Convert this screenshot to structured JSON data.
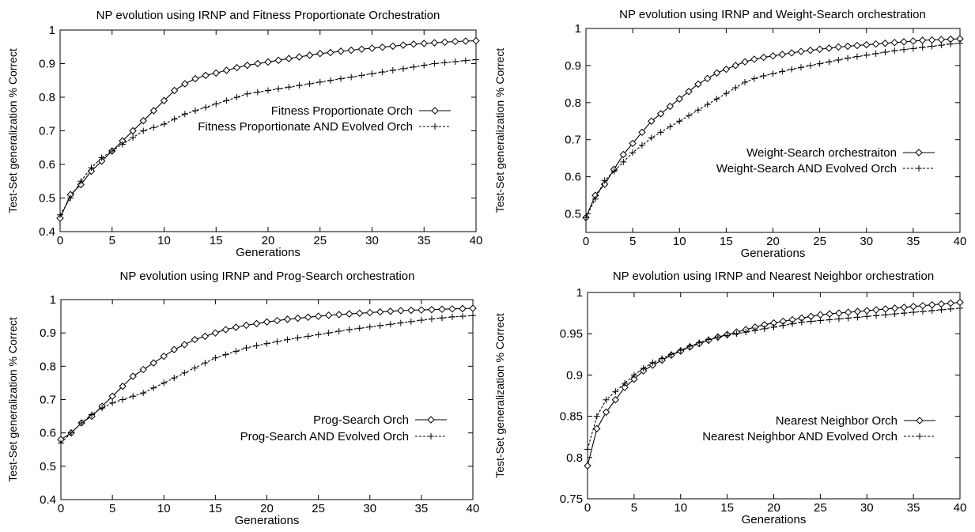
{
  "chart_data": [
    {
      "type": "line",
      "title": "NP evolution using IRNP and Fitness Proportionate Orchestration",
      "xlabel": "Generations",
      "ylabel": "Test-Set generalization % Correct",
      "xlim": [
        0,
        40
      ],
      "ylim": [
        0.4,
        1
      ],
      "xticks": [
        0,
        5,
        10,
        15,
        20,
        25,
        30,
        35,
        40
      ],
      "yticks": [
        0.4,
        0.5,
        0.6,
        0.7,
        0.8,
        0.9,
        1
      ],
      "grid": false,
      "legend": "center-right",
      "x": [
        0,
        1,
        2,
        3,
        4,
        5,
        6,
        7,
        8,
        9,
        10,
        11,
        12,
        13,
        14,
        15,
        16,
        17,
        18,
        19,
        20,
        21,
        22,
        23,
        24,
        25,
        26,
        27,
        28,
        29,
        30,
        31,
        32,
        33,
        34,
        35,
        36,
        37,
        38,
        39,
        40
      ],
      "series": [
        {
          "name": "Fitness Proportionate Orch",
          "marker": "diamond",
          "values": [
            0.44,
            0.51,
            0.54,
            0.58,
            0.61,
            0.64,
            0.67,
            0.7,
            0.73,
            0.76,
            0.79,
            0.82,
            0.84,
            0.855,
            0.865,
            0.872,
            0.88,
            0.888,
            0.895,
            0.9,
            0.905,
            0.91,
            0.915,
            0.92,
            0.925,
            0.93,
            0.933,
            0.937,
            0.94,
            0.943,
            0.946,
            0.949,
            0.952,
            0.955,
            0.958,
            0.96,
            0.962,
            0.964,
            0.966,
            0.967,
            0.968
          ]
        },
        {
          "name": "Fitness Proportionate AND Evolved Orch",
          "marker": "plus",
          "values": [
            0.45,
            0.5,
            0.55,
            0.59,
            0.62,
            0.64,
            0.66,
            0.68,
            0.7,
            0.71,
            0.72,
            0.735,
            0.75,
            0.76,
            0.77,
            0.78,
            0.79,
            0.8,
            0.81,
            0.815,
            0.82,
            0.825,
            0.83,
            0.835,
            0.84,
            0.845,
            0.85,
            0.855,
            0.86,
            0.865,
            0.87,
            0.875,
            0.88,
            0.885,
            0.89,
            0.895,
            0.9,
            0.903,
            0.906,
            0.909,
            0.912
          ]
        }
      ]
    },
    {
      "type": "line",
      "title": "NP evolution using IRNP and Weight-Search orchestration",
      "xlabel": "Generations",
      "ylabel": "Test-Set generalization % Correct",
      "xlim": [
        0,
        40
      ],
      "ylim": [
        0.45,
        1
      ],
      "xticks": [
        0,
        5,
        10,
        15,
        20,
        25,
        30,
        35,
        40
      ],
      "yticks": [
        0.5,
        0.6,
        0.7,
        0.8,
        0.9,
        1
      ],
      "grid": false,
      "legend": "center-right",
      "x": [
        0,
        1,
        2,
        3,
        4,
        5,
        6,
        7,
        8,
        9,
        10,
        11,
        12,
        13,
        14,
        15,
        16,
        17,
        18,
        19,
        20,
        21,
        22,
        23,
        24,
        25,
        26,
        27,
        28,
        29,
        30,
        31,
        32,
        33,
        34,
        35,
        36,
        37,
        38,
        39,
        40
      ],
      "series": [
        {
          "name": "Weight-Search orchestraiton",
          "marker": "diamond",
          "values": [
            0.49,
            0.55,
            0.58,
            0.62,
            0.66,
            0.69,
            0.72,
            0.75,
            0.77,
            0.79,
            0.81,
            0.83,
            0.85,
            0.865,
            0.88,
            0.89,
            0.9,
            0.91,
            0.917,
            0.922,
            0.926,
            0.93,
            0.934,
            0.938,
            0.941,
            0.944,
            0.947,
            0.95,
            0.952,
            0.954,
            0.956,
            0.958,
            0.96,
            0.962,
            0.964,
            0.966,
            0.968,
            0.969,
            0.97,
            0.971,
            0.972
          ]
        },
        {
          "name": "Weight-Search AND Evolved Orch",
          "marker": "plus",
          "values": [
            0.49,
            0.54,
            0.59,
            0.615,
            0.64,
            0.665,
            0.685,
            0.705,
            0.72,
            0.735,
            0.75,
            0.765,
            0.78,
            0.795,
            0.81,
            0.825,
            0.84,
            0.855,
            0.865,
            0.872,
            0.878,
            0.884,
            0.89,
            0.895,
            0.9,
            0.905,
            0.91,
            0.915,
            0.92,
            0.924,
            0.928,
            0.932,
            0.936,
            0.94,
            0.943,
            0.946,
            0.949,
            0.952,
            0.955,
            0.958,
            0.96
          ]
        }
      ]
    },
    {
      "type": "line",
      "title": "NP evolution using IRNP and Prog-Search orchestration",
      "xlabel": "Generations",
      "ylabel": "Test-Set generalization % Correct",
      "xlim": [
        0,
        40
      ],
      "ylim": [
        0.4,
        1
      ],
      "xticks": [
        0,
        5,
        10,
        15,
        20,
        25,
        30,
        35,
        40
      ],
      "yticks": [
        0.4,
        0.5,
        0.6,
        0.7,
        0.8,
        0.9,
        1
      ],
      "grid": false,
      "legend": "center-right",
      "x": [
        0,
        1,
        2,
        3,
        4,
        5,
        6,
        7,
        8,
        9,
        10,
        11,
        12,
        13,
        14,
        15,
        16,
        17,
        18,
        19,
        20,
        21,
        22,
        23,
        24,
        25,
        26,
        27,
        28,
        29,
        30,
        31,
        32,
        33,
        34,
        35,
        36,
        37,
        38,
        39,
        40
      ],
      "series": [
        {
          "name": "Prog-Search Orch",
          "marker": "diamond",
          "values": [
            0.58,
            0.6,
            0.63,
            0.65,
            0.68,
            0.71,
            0.74,
            0.77,
            0.79,
            0.81,
            0.83,
            0.85,
            0.865,
            0.88,
            0.89,
            0.9,
            0.91,
            0.917,
            0.923,
            0.928,
            0.933,
            0.937,
            0.941,
            0.944,
            0.947,
            0.95,
            0.953,
            0.955,
            0.957,
            0.959,
            0.961,
            0.963,
            0.965,
            0.967,
            0.968,
            0.969,
            0.97,
            0.971,
            0.972,
            0.973,
            0.974
          ]
        },
        {
          "name": "Prog-Search AND Evolved Orch",
          "marker": "plus",
          "values": [
            0.57,
            0.6,
            0.63,
            0.655,
            0.675,
            0.69,
            0.7,
            0.71,
            0.72,
            0.735,
            0.75,
            0.765,
            0.78,
            0.795,
            0.81,
            0.825,
            0.835,
            0.845,
            0.855,
            0.862,
            0.868,
            0.874,
            0.88,
            0.885,
            0.89,
            0.895,
            0.9,
            0.905,
            0.91,
            0.914,
            0.918,
            0.922,
            0.926,
            0.93,
            0.934,
            0.938,
            0.942,
            0.945,
            0.948,
            0.95,
            0.952
          ]
        }
      ]
    },
    {
      "type": "line",
      "title": "NP evolution using IRNP and Nearest Neighbor orchestration",
      "xlabel": "Generations",
      "ylabel": "Test-Set generalization % Correct",
      "xlim": [
        0,
        40
      ],
      "ylim": [
        0.75,
        1
      ],
      "xticks": [
        0,
        5,
        10,
        15,
        20,
        25,
        30,
        35,
        40
      ],
      "yticks": [
        0.75,
        0.8,
        0.85,
        0.9,
        0.95,
        1
      ],
      "grid": false,
      "legend": "bottom-right",
      "x": [
        0,
        1,
        2,
        3,
        4,
        5,
        6,
        7,
        8,
        9,
        10,
        11,
        12,
        13,
        14,
        15,
        16,
        17,
        18,
        19,
        20,
        21,
        22,
        23,
        24,
        25,
        26,
        27,
        28,
        29,
        30,
        31,
        32,
        33,
        34,
        35,
        36,
        37,
        38,
        39,
        40
      ],
      "series": [
        {
          "name": "Nearest Neighbor Orch",
          "marker": "diamond",
          "values": [
            0.79,
            0.835,
            0.855,
            0.87,
            0.885,
            0.895,
            0.905,
            0.912,
            0.918,
            0.924,
            0.929,
            0.934,
            0.938,
            0.942,
            0.946,
            0.949,
            0.952,
            0.955,
            0.958,
            0.961,
            0.963,
            0.965,
            0.967,
            0.969,
            0.971,
            0.973,
            0.974,
            0.975,
            0.976,
            0.977,
            0.978,
            0.979,
            0.98,
            0.981,
            0.982,
            0.983,
            0.984,
            0.985,
            0.986,
            0.987,
            0.988
          ]
        },
        {
          "name": "Nearest Neighbor AND Evolved Orch",
          "marker": "plus",
          "values": [
            0.81,
            0.85,
            0.87,
            0.88,
            0.89,
            0.9,
            0.908,
            0.915,
            0.92,
            0.925,
            0.93,
            0.935,
            0.939,
            0.943,
            0.946,
            0.948,
            0.95,
            0.952,
            0.954,
            0.956,
            0.958,
            0.96,
            0.962,
            0.964,
            0.965,
            0.966,
            0.967,
            0.968,
            0.969,
            0.97,
            0.971,
            0.972,
            0.973,
            0.974,
            0.975,
            0.976,
            0.977,
            0.978,
            0.979,
            0.98,
            0.981
          ]
        }
      ]
    }
  ]
}
